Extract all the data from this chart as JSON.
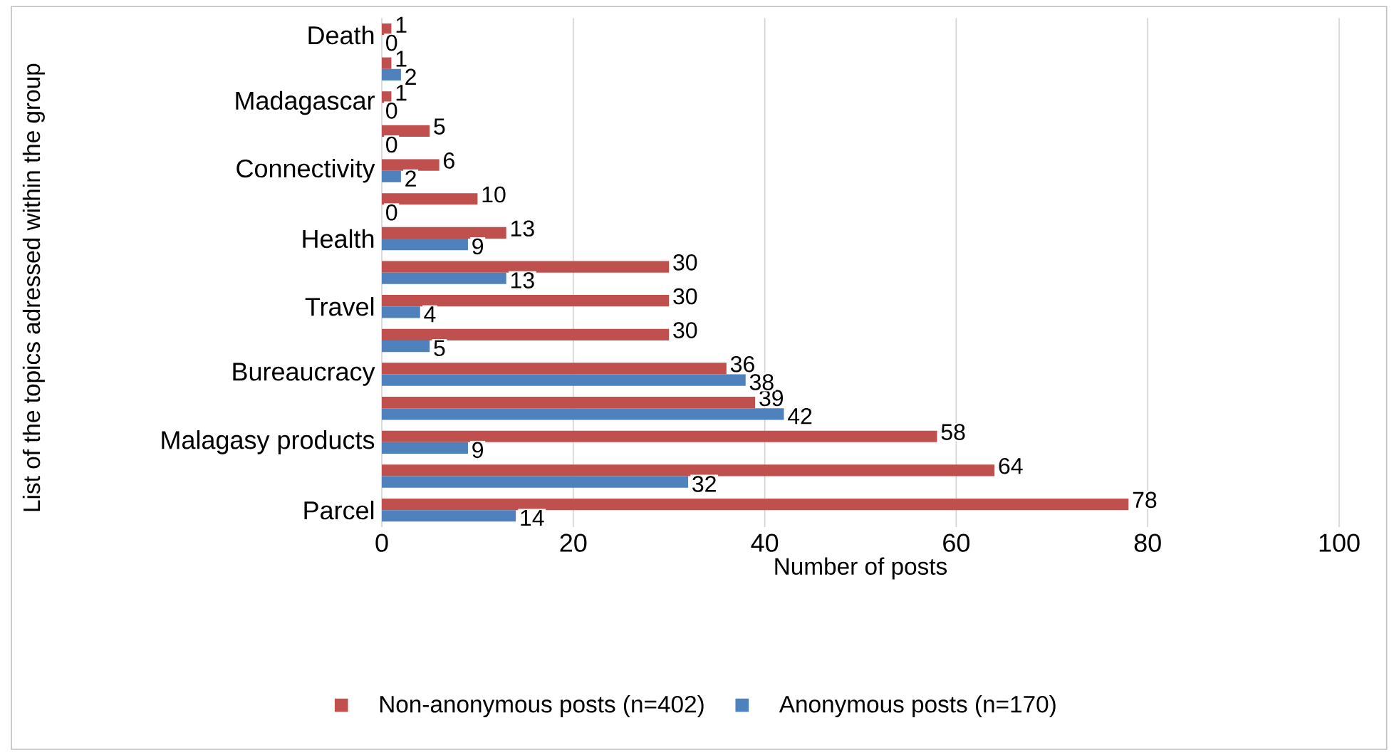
{
  "chart_data": {
    "type": "bar",
    "orientation": "horizontal",
    "xlabel": "Number of posts",
    "ylabel": "List of the topics adressed within the group",
    "categories": [
      "Death",
      null,
      "Madagascar",
      null,
      "Connectivity",
      null,
      "Health",
      null,
      "Travel",
      null,
      "Bureaucracy",
      null,
      "Malagasy products",
      null,
      "Parcel"
    ],
    "series": [
      {
        "name": "Non-anonymous posts (n=402)",
        "color": "#c0504d",
        "values": [
          1,
          1,
          1,
          5,
          6,
          10,
          13,
          30,
          30,
          30,
          36,
          39,
          58,
          64,
          78
        ]
      },
      {
        "name": "Anonymous posts (n=170)",
        "color": "#4f81bd",
        "values": [
          0,
          2,
          0,
          0,
          2,
          0,
          9,
          13,
          4,
          5,
          38,
          42,
          9,
          32,
          14
        ]
      }
    ],
    "xlim": [
      0,
      100
    ],
    "xticks": [
      0,
      20,
      40,
      60,
      80,
      100
    ],
    "grid": "x",
    "legend": "bottom",
    "data_labels": true
  }
}
